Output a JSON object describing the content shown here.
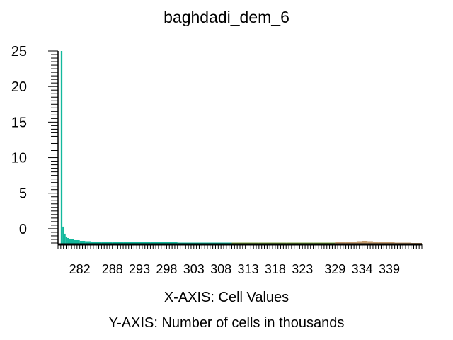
{
  "chart_data": {
    "type": "bar",
    "title": "baghdadi_dem_6",
    "xlabel": "X-AXIS: Cell Values",
    "ylabel": "Y-AXIS: Number of cells in thousands",
    "xlim": [
      278,
      345
    ],
    "ylim": [
      -2.2,
      25
    ],
    "y_ticks": [
      0,
      5,
      10,
      15,
      20,
      25
    ],
    "x_ticks": [
      282,
      288,
      293,
      298,
      303,
      308,
      313,
      318,
      323,
      329,
      334,
      339
    ],
    "grid": false,
    "legend": "none",
    "colors": {
      "low": "#12b89c",
      "mid": "#7da840",
      "high": "#c39a6b",
      "axis": "#000000"
    },
    "x": [
      278.5,
      278.8,
      279.1,
      279.4,
      279.7,
      280.0,
      280.4,
      281.0,
      282.0,
      283.0,
      284.0,
      286.0,
      288.0,
      290.0,
      292.0,
      295.0,
      300.0,
      305.0,
      310.0,
      315.0,
      320.0,
      325.0,
      329.0,
      331.0,
      333.0,
      334.0,
      335.0,
      336.0,
      337.0,
      338.0,
      340.0,
      343.0
    ],
    "values": [
      25.0,
      0.3,
      -0.7,
      -1.1,
      -1.3,
      -1.4,
      -1.5,
      -1.6,
      -1.7,
      -1.75,
      -1.8,
      -1.8,
      -1.85,
      -1.85,
      -1.9,
      -1.9,
      -1.95,
      -1.95,
      -1.95,
      -1.95,
      -1.95,
      -1.95,
      -1.9,
      -1.85,
      -1.75,
      -1.7,
      -1.75,
      -1.8,
      -1.85,
      -1.9,
      -1.95,
      -2.0
    ]
  }
}
